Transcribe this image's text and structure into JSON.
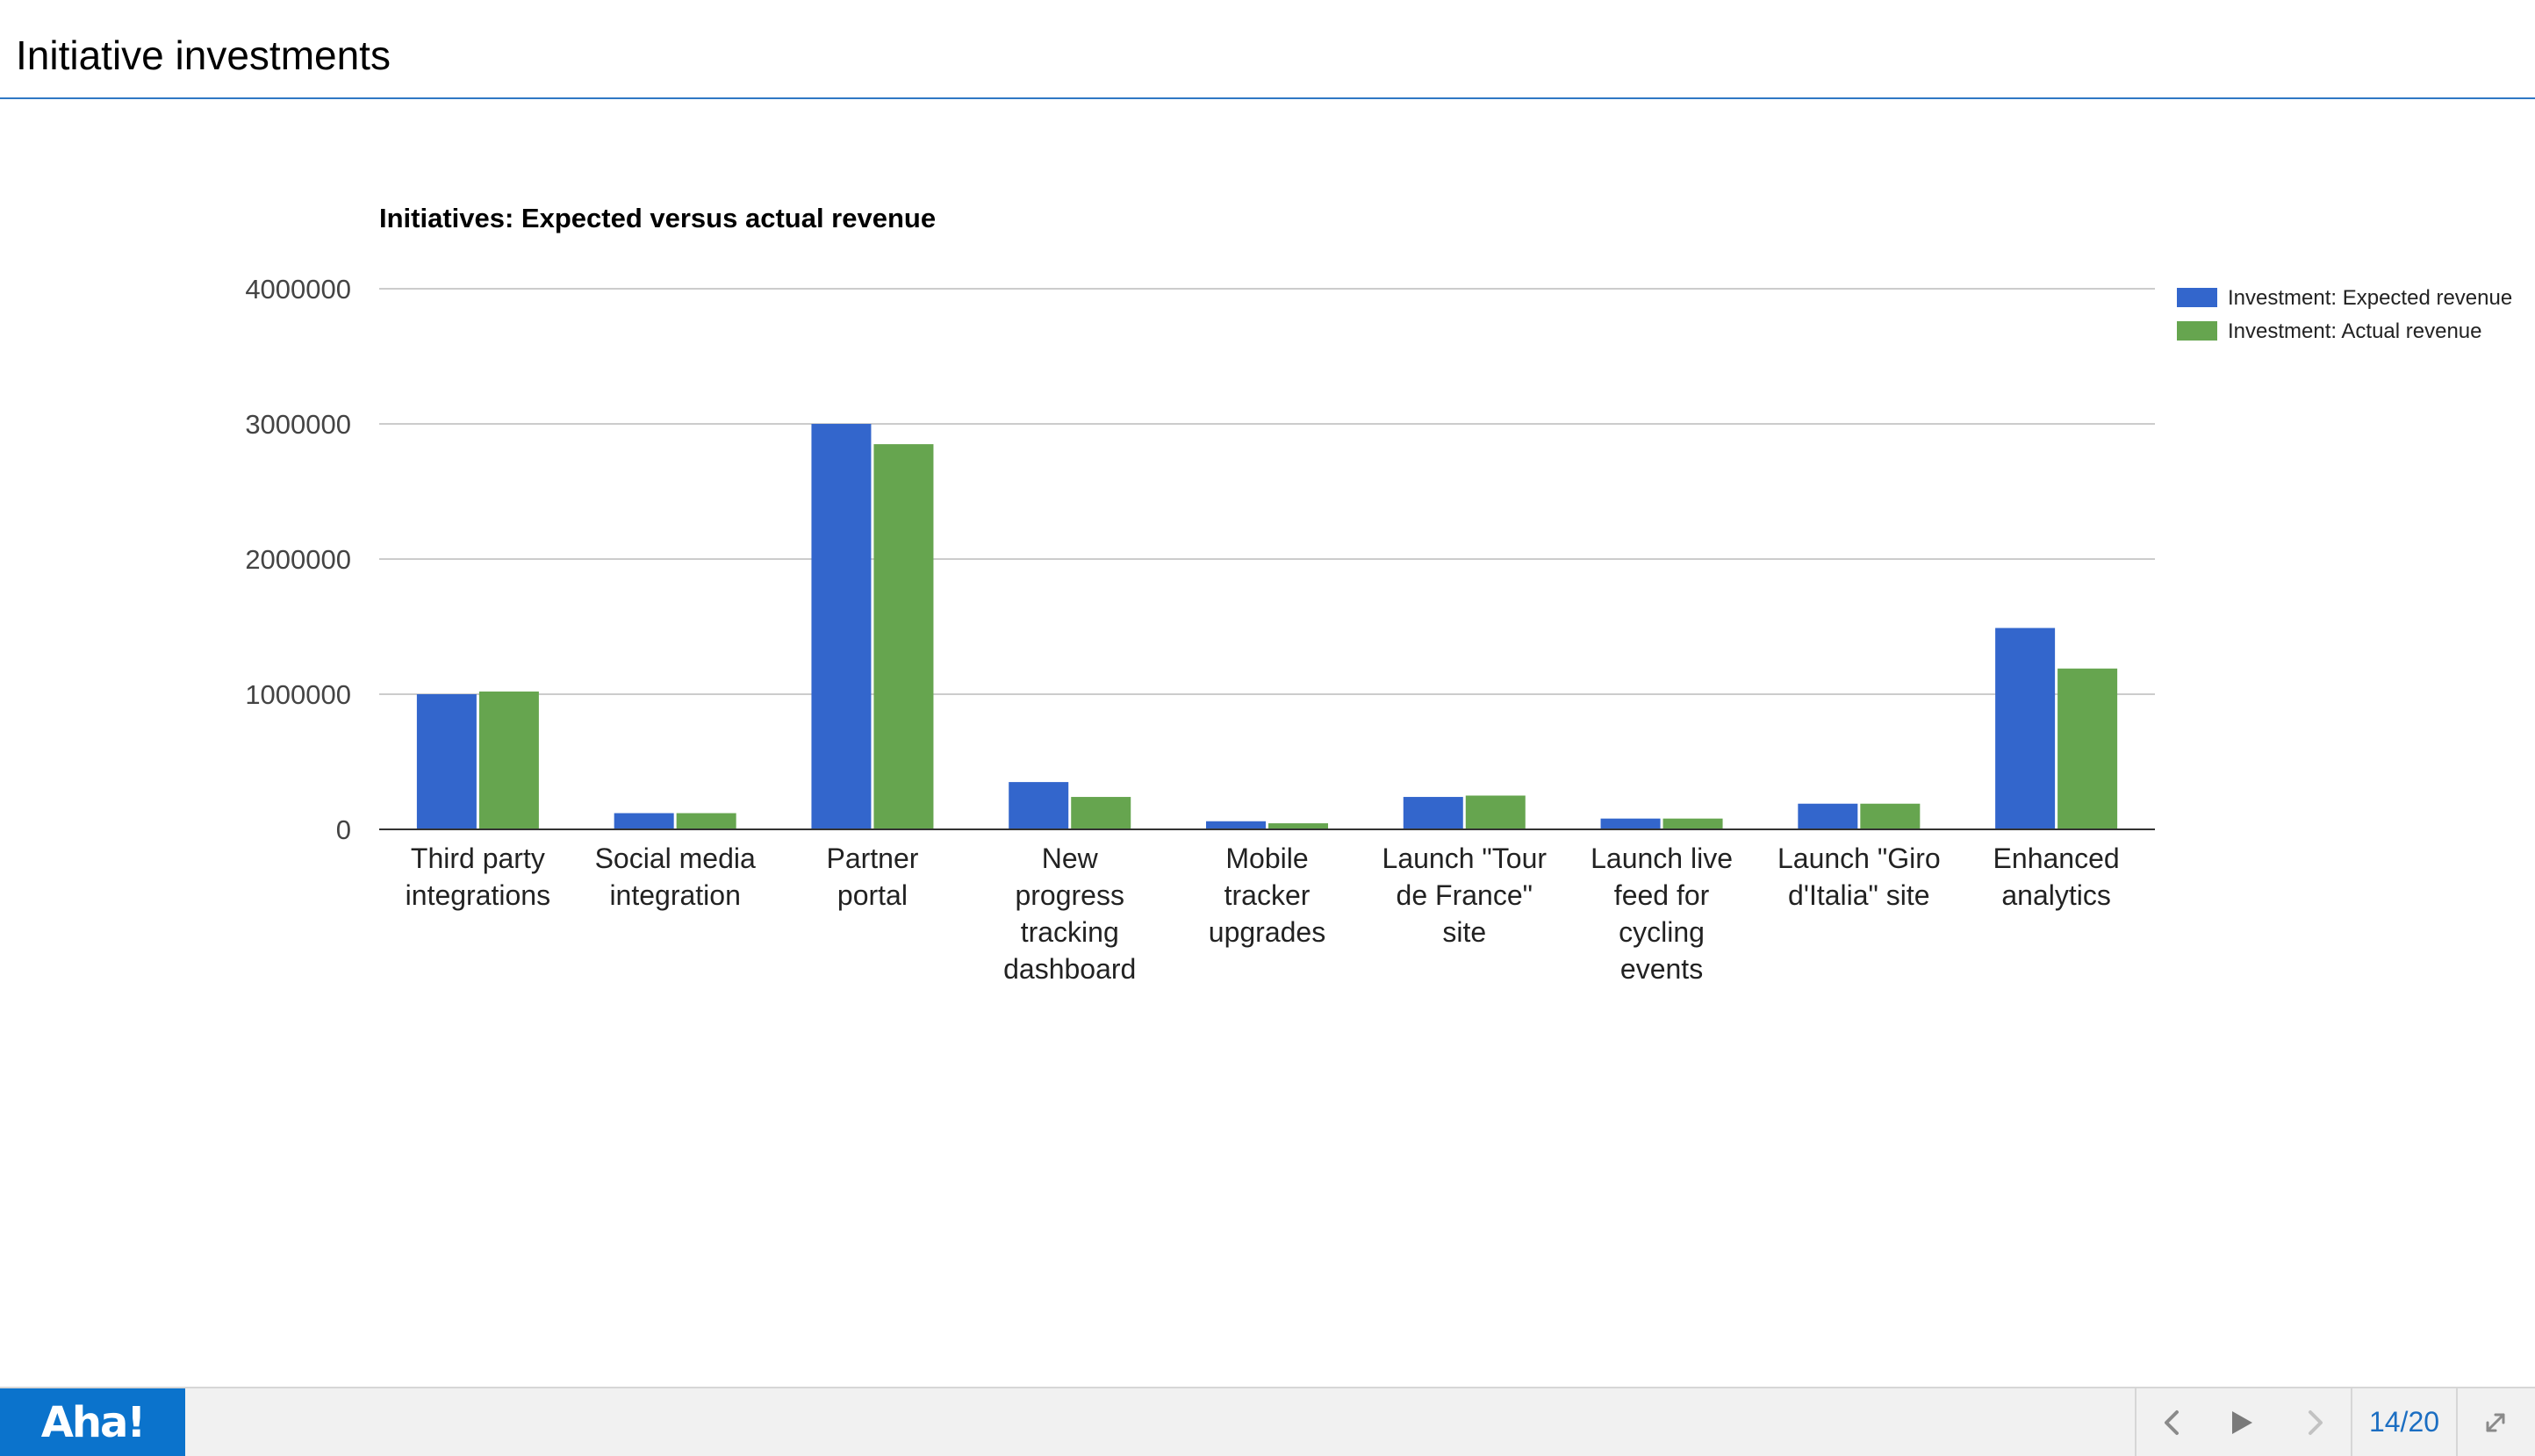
{
  "slide": {
    "title": "Initiative investments"
  },
  "chart_data": {
    "type": "bar",
    "title": "Initiatives: Expected versus actual revenue",
    "xlabel": "",
    "ylabel": "",
    "ylim": [
      0,
      4000000
    ],
    "yticks": [
      "4000000",
      "3000000",
      "2000000",
      "1000000",
      "0"
    ],
    "ytick_values": [
      4000000,
      3000000,
      2000000,
      1000000,
      0
    ],
    "grid": true,
    "legend_position": "right",
    "categories": [
      "Third party integrations",
      "Social media integration",
      "Partner portal",
      "New progress tracking dashboard",
      "Mobile tracker upgrades",
      "Launch \"Tour de France\" site",
      "Launch live feed for cycling events",
      "Launch \"Giro d'Italia\" site",
      "Enhanced analytics"
    ],
    "category_lines": [
      [
        "Third party",
        "integrations"
      ],
      [
        "Social media",
        "integration"
      ],
      [
        "Partner",
        "portal"
      ],
      [
        "New",
        "progress",
        "tracking",
        "dashboard"
      ],
      [
        "Mobile",
        "tracker",
        "upgrades"
      ],
      [
        "Launch \"Tour",
        "de France\"",
        "site"
      ],
      [
        "Launch live",
        "feed for",
        "cycling",
        "events"
      ],
      [
        "Launch \"Giro",
        "d'Italia\" site"
      ],
      [
        "Enhanced",
        "analytics"
      ]
    ],
    "series": [
      {
        "name": "Investment: Expected revenue",
        "color": "#3366cc",
        "values": [
          1000000,
          120000,
          3000000,
          350000,
          60000,
          240000,
          80000,
          190000,
          1490000
        ]
      },
      {
        "name": "Investment: Actual revenue",
        "color": "#66a54f",
        "values": [
          1020000,
          120000,
          2850000,
          240000,
          45000,
          250000,
          80000,
          190000,
          1190000
        ]
      }
    ]
  },
  "footer": {
    "logo_text": "Aha!",
    "prev_icon": "chevron-left-icon",
    "play_icon": "play-icon",
    "next_icon": "chevron-right-icon",
    "fullscreen_icon": "expand-icon",
    "page_counter": "14/20",
    "accent_color": "#0b73cc"
  }
}
